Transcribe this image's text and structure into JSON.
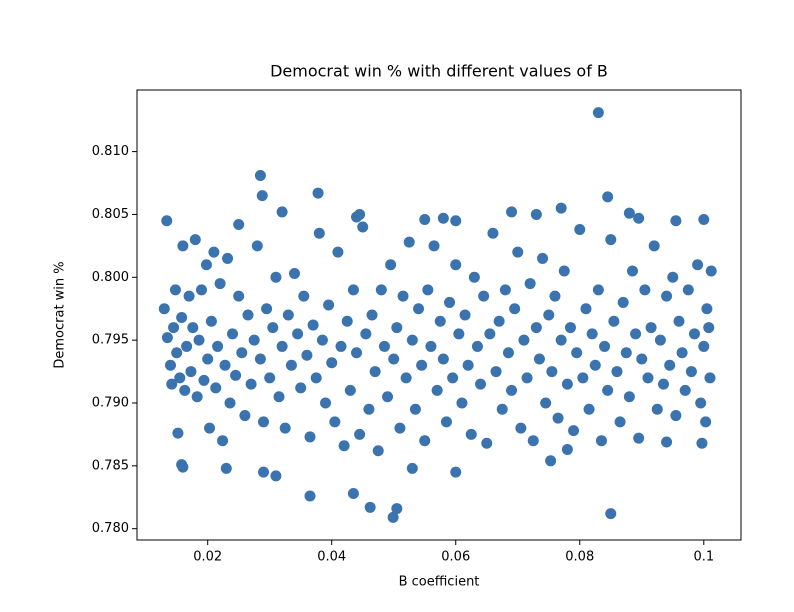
{
  "chart_data": {
    "type": "scatter",
    "title": "Democrat win % with different values of B",
    "xlabel": "B coefficient",
    "ylabel": "Democrat win %",
    "color": "#3b73ae",
    "xlim": [
      0.0086,
      0.106
    ],
    "ylim": [
      0.7791,
      0.8149
    ],
    "xticks": [
      0.02,
      0.04,
      0.06,
      0.08,
      0.1
    ],
    "yticks": [
      {
        "value": 0.78,
        "label": "0.780"
      },
      0.785,
      {
        "value": 0.79,
        "label": "0.790"
      },
      0.795,
      {
        "value": 0.8,
        "label": "0.800"
      },
      0.805,
      {
        "value": 0.81,
        "label": "0.810"
      }
    ],
    "x": [
      0.083,
      0.0285,
      0.0288,
      0.0378,
      0.0134,
      0.0845,
      0.0499,
      0.0505,
      0.085,
      0.0365,
      0.0435,
      0.0462,
      0.016,
      0.0158,
      0.023,
      0.029,
      0.031,
      0.06,
      0.053,
      0.0753,
      0.078,
      0.0997,
      0.094,
      0.032,
      0.025,
      0.044,
      0.0445,
      0.058,
      0.06,
      0.069,
      0.073,
      0.077,
      0.088,
      0.0895,
      0.0955,
      0.1,
      0.055,
      0.013,
      0.0135,
      0.014,
      0.0142,
      0.0145,
      0.0148,
      0.015,
      0.0152,
      0.0155,
      0.0158,
      0.016,
      0.0163,
      0.0166,
      0.017,
      0.0173,
      0.0176,
      0.018,
      0.0183,
      0.0186,
      0.019,
      0.0194,
      0.0198,
      0.02,
      0.0203,
      0.0206,
      0.021,
      0.0213,
      0.0216,
      0.022,
      0.0224,
      0.0228,
      0.0232,
      0.0236,
      0.024,
      0.0245,
      0.025,
      0.0255,
      0.026,
      0.0265,
      0.027,
      0.0275,
      0.028,
      0.0285,
      0.029,
      0.0295,
      0.03,
      0.0305,
      0.031,
      0.0315,
      0.032,
      0.0325,
      0.033,
      0.0335,
      0.034,
      0.0345,
      0.035,
      0.0355,
      0.036,
      0.0365,
      0.037,
      0.0375,
      0.038,
      0.0385,
      0.039,
      0.0395,
      0.04,
      0.0405,
      0.041,
      0.0415,
      0.042,
      0.0425,
      0.043,
      0.0435,
      0.044,
      0.0445,
      0.045,
      0.0455,
      0.046,
      0.0465,
      0.047,
      0.0475,
      0.048,
      0.0485,
      0.049,
      0.0495,
      0.05,
      0.0505,
      0.051,
      0.0515,
      0.052,
      0.0525,
      0.053,
      0.0535,
      0.054,
      0.0545,
      0.055,
      0.0555,
      0.056,
      0.0565,
      0.057,
      0.0575,
      0.058,
      0.0585,
      0.059,
      0.0595,
      0.06,
      0.0605,
      0.061,
      0.0615,
      0.062,
      0.0625,
      0.063,
      0.0635,
      0.064,
      0.0645,
      0.065,
      0.0655,
      0.066,
      0.0665,
      0.067,
      0.0675,
      0.068,
      0.0685,
      0.069,
      0.0695,
      0.07,
      0.0705,
      0.071,
      0.0715,
      0.072,
      0.0725,
      0.073,
      0.0735,
      0.074,
      0.0745,
      0.075,
      0.0755,
      0.076,
      0.0765,
      0.077,
      0.0775,
      0.078,
      0.0785,
      0.079,
      0.0795,
      0.08,
      0.0805,
      0.081,
      0.0815,
      0.082,
      0.0825,
      0.083,
      0.0835,
      0.084,
      0.0845,
      0.085,
      0.0855,
      0.086,
      0.0865,
      0.087,
      0.0875,
      0.088,
      0.0885,
      0.089,
      0.0895,
      0.09,
      0.0905,
      0.091,
      0.0915,
      0.092,
      0.0925,
      0.093,
      0.0935,
      0.094,
      0.0945,
      0.095,
      0.0955,
      0.096,
      0.0965,
      0.097,
      0.0975,
      0.098,
      0.0985,
      0.099,
      0.0995,
      0.1,
      0.1005,
      0.101,
      0.1012,
      0.1008,
      0.1003
    ],
    "values": [
      0.8131,
      0.8081,
      0.8065,
      0.8067,
      0.8045,
      0.8064,
      0.7809,
      0.7816,
      0.7812,
      0.7826,
      0.7828,
      0.7817,
      0.7849,
      0.7851,
      0.7848,
      0.7845,
      0.7842,
      0.7845,
      0.7848,
      0.7854,
      0.7863,
      0.7868,
      0.7869,
      0.8052,
      0.8042,
      0.8048,
      0.805,
      0.8047,
      0.8045,
      0.8052,
      0.805,
      0.8055,
      0.8051,
      0.8047,
      0.8045,
      0.8046,
      0.8046,
      0.7975,
      0.7952,
      0.793,
      0.7915,
      0.796,
      0.799,
      0.794,
      0.7876,
      0.792,
      0.7968,
      0.8025,
      0.791,
      0.7945,
      0.7985,
      0.7925,
      0.796,
      0.803,
      0.7905,
      0.795,
      0.799,
      0.7918,
      0.801,
      0.7935,
      0.788,
      0.7965,
      0.802,
      0.7912,
      0.7945,
      0.7995,
      0.787,
      0.793,
      0.8015,
      0.79,
      0.7955,
      0.7922,
      0.7985,
      0.794,
      0.789,
      0.797,
      0.7915,
      0.795,
      0.8025,
      0.7935,
      0.7885,
      0.7975,
      0.792,
      0.796,
      0.8,
      0.7905,
      0.7945,
      0.788,
      0.797,
      0.793,
      0.8003,
      0.7955,
      0.7912,
      0.7985,
      0.7938,
      0.7873,
      0.7962,
      0.792,
      0.8035,
      0.795,
      0.79,
      0.7978,
      0.7932,
      0.7885,
      0.802,
      0.7945,
      0.7866,
      0.7965,
      0.791,
      0.799,
      0.794,
      0.7875,
      0.804,
      0.7955,
      0.7895,
      0.797,
      0.7925,
      0.7862,
      0.799,
      0.7945,
      0.7905,
      0.801,
      0.7935,
      0.796,
      0.788,
      0.7985,
      0.792,
      0.8028,
      0.795,
      0.7895,
      0.7975,
      0.793,
      0.787,
      0.799,
      0.7945,
      0.8025,
      0.791,
      0.7965,
      0.7935,
      0.7885,
      0.798,
      0.792,
      0.801,
      0.7955,
      0.79,
      0.797,
      0.793,
      0.7875,
      0.8,
      0.7945,
      0.7915,
      0.7985,
      0.7868,
      0.7955,
      0.8035,
      0.7925,
      0.7965,
      0.7895,
      0.799,
      0.794,
      0.791,
      0.7975,
      0.802,
      0.788,
      0.795,
      0.792,
      0.7995,
      0.787,
      0.796,
      0.7935,
      0.8015,
      0.79,
      0.797,
      0.7925,
      0.7985,
      0.7888,
      0.795,
      0.8005,
      0.7915,
      0.796,
      0.7878,
      0.794,
      0.8038,
      0.792,
      0.7975,
      0.7895,
      0.7955,
      0.793,
      0.799,
      0.787,
      0.7945,
      0.791,
      0.803,
      0.7965,
      0.7925,
      0.7885,
      0.798,
      0.794,
      0.7905,
      0.8005,
      0.7955,
      0.7872,
      0.7935,
      0.799,
      0.792,
      0.796,
      0.8025,
      0.7895,
      0.795,
      0.7915,
      0.7985,
      0.793,
      0.8,
      0.789,
      0.7965,
      0.794,
      0.791,
      0.799,
      0.7925,
      0.7955,
      0.801,
      0.79,
      0.7945,
      0.7975,
      0.792,
      0.8005,
      0.796,
      0.7885
    ]
  }
}
